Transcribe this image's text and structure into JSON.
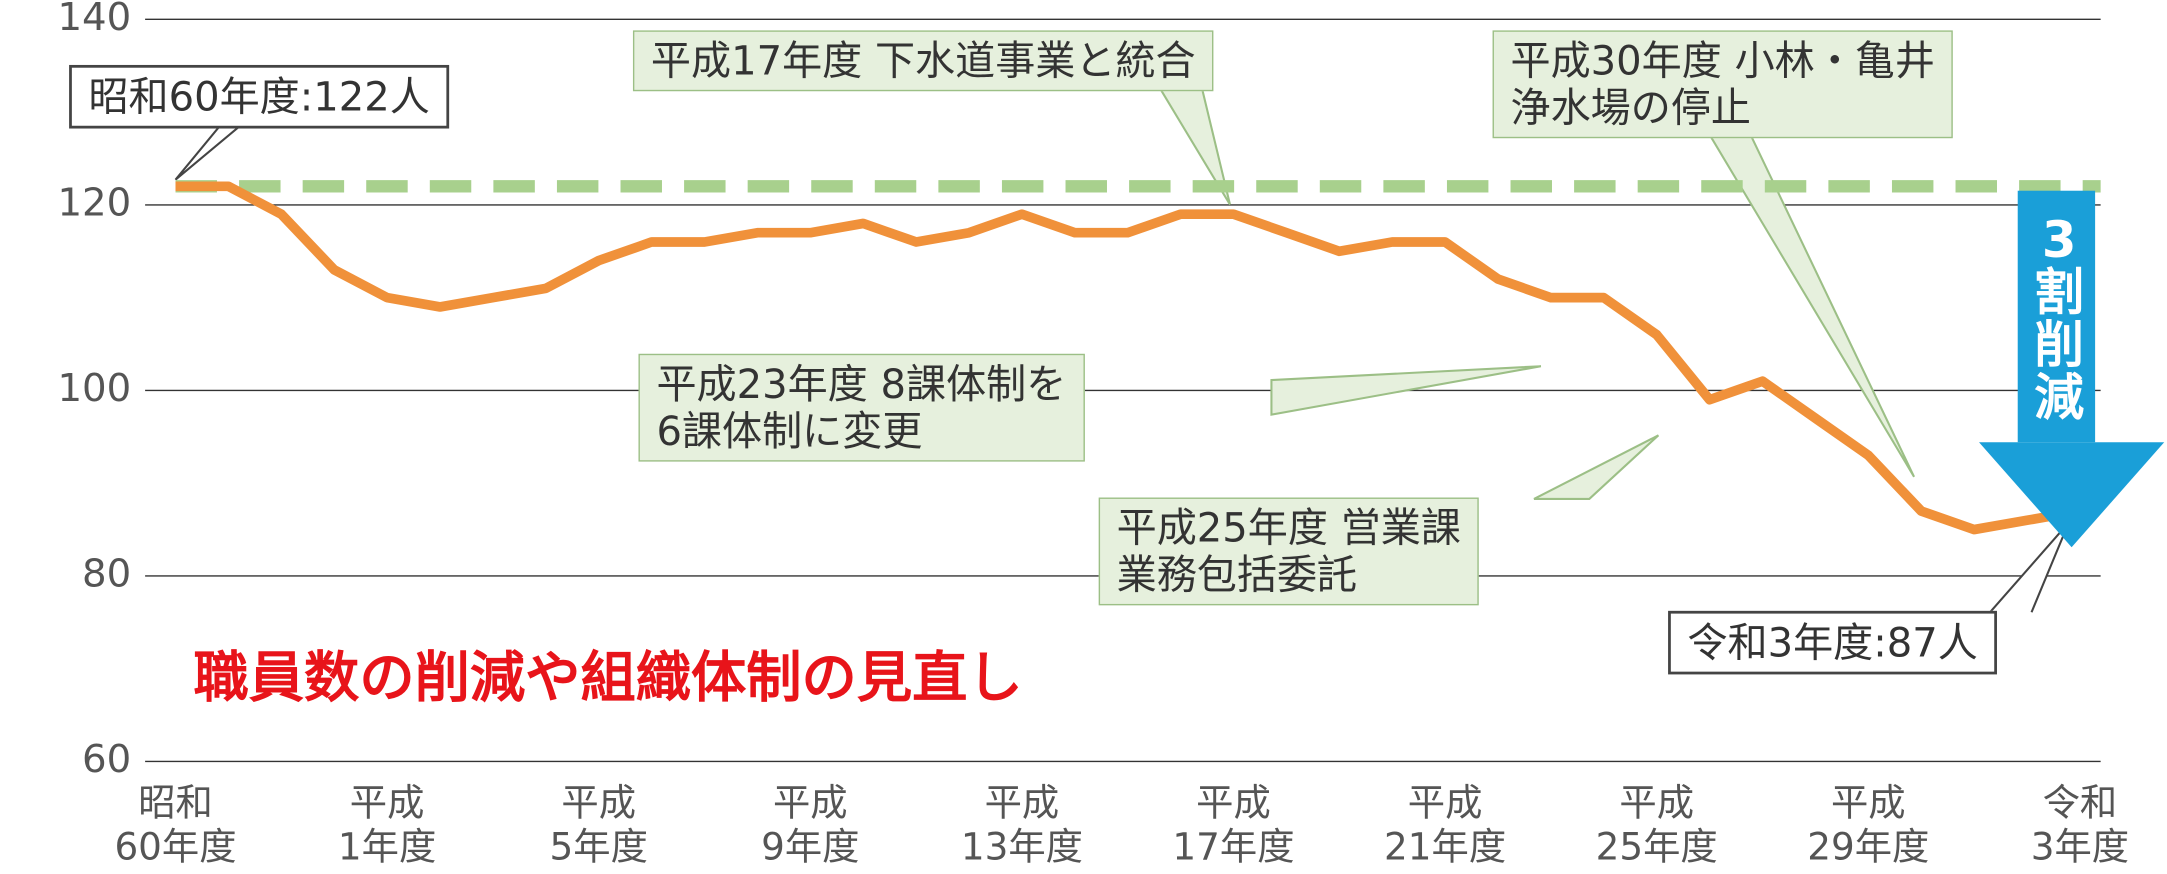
{
  "chart_data": {
    "type": "line",
    "title": "職員数の削減や組織体制の見直し",
    "categories": [
      "昭和\n60年度",
      null,
      null,
      null,
      "平成\n1年度",
      null,
      null,
      null,
      "平成\n5年度",
      null,
      null,
      null,
      "平成\n9年度",
      null,
      null,
      null,
      "平成\n13年度",
      null,
      null,
      null,
      "平成\n17年度",
      null,
      null,
      null,
      "平成\n21年度",
      null,
      null,
      null,
      "平成\n25年度",
      null,
      null,
      null,
      "平成\n29年度",
      null,
      null,
      null,
      "令和\n3年度"
    ],
    "values": [
      122,
      122,
      119,
      113,
      110,
      109,
      110,
      111,
      114,
      116,
      116,
      117,
      117,
      118,
      116,
      117,
      119,
      117,
      117,
      119,
      119,
      117,
      115,
      116,
      116,
      112,
      110,
      110,
      106,
      99,
      101,
      97,
      93,
      87,
      85,
      86,
      87
    ],
    "color": "#f0913a",
    "reference_line": {
      "value": 122,
      "color": "#a8d08d"
    },
    "ylim": [
      60,
      140
    ],
    "yticks": [
      60,
      80,
      100,
      120,
      140
    ],
    "grid": true,
    "annotations": [
      "昭和60年度:122人",
      "平成17年度 下水道事業と統合",
      "平成30年度 小林・亀井\n浄水場の停止",
      "平成23年度 8課体制を\n6課体制に変更",
      "平成25年度 営業課\n業務包括委託",
      "令和3年度:87人"
    ],
    "callout": "3割削減"
  }
}
